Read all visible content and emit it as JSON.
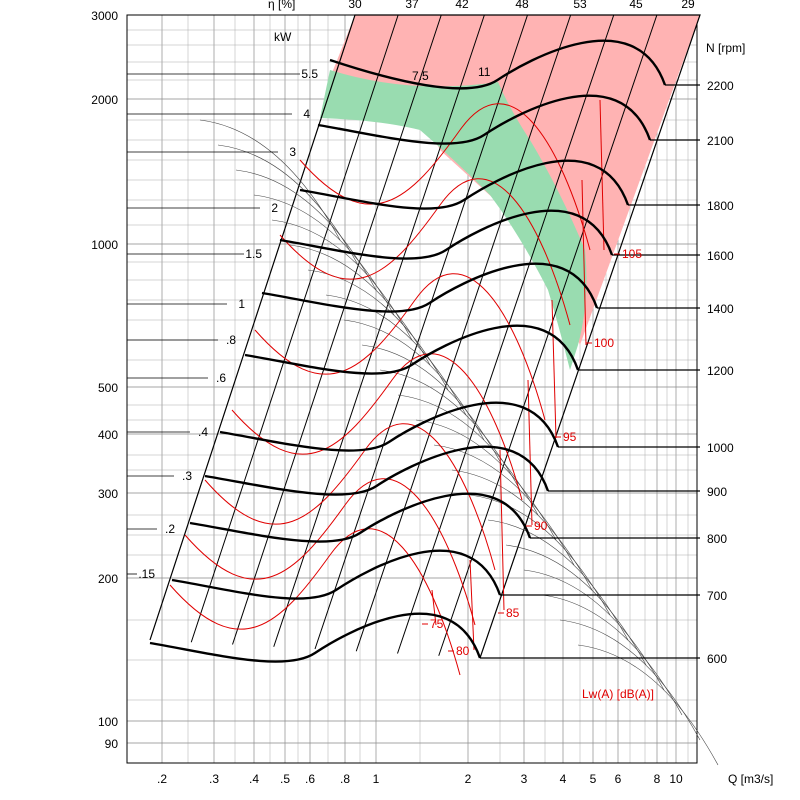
{
  "chart_data": {
    "type": "line",
    "title": "",
    "xlabel": "Q [m3/s]",
    "ylabel": "",
    "x_scale": "log",
    "y_scale": "log",
    "xlim": [
      0.15,
      15
    ],
    "ylim": [
      80,
      3000
    ],
    "x_ticks": [
      0.2,
      0.3,
      0.4,
      0.5,
      0.6,
      0.8,
      1,
      2,
      3,
      4,
      5,
      6,
      8,
      10
    ],
    "x_tick_labels": [
      ".2",
      ".3",
      ".4",
      ".5",
      ".6",
      ".8",
      "1",
      "2",
      "3",
      "4",
      "5",
      "6",
      "8",
      "10"
    ],
    "y_ticks": [
      90,
      100,
      200,
      300,
      400,
      500,
      1000,
      2000,
      3000
    ],
    "y_tick_labels": [
      "90",
      "100",
      "200",
      "300",
      "400",
      "500",
      "1000",
      "2000",
      "3000"
    ],
    "speed_axis_label": "N [rpm]",
    "speed_ticks": [
      "2200",
      "2100",
      "1800",
      "1600",
      "1400",
      "1200",
      "1000",
      "900",
      "800",
      "700",
      "600"
    ],
    "power_axis_label": "kW",
    "power_labels": [
      "5.5",
      "4",
      "3",
      "2",
      "1.5",
      "1",
      ".8",
      ".6",
      ".4",
      ".3",
      ".2",
      ".15"
    ],
    "efficiency_axis_label": "η [%]",
    "efficiency_labels": [
      "30",
      "37",
      "42",
      "48",
      "53",
      "45",
      "29"
    ],
    "top_power_labels": [
      "7.5",
      "11"
    ],
    "sound_axis_label": "Lw(A)  [dB(A)]",
    "sound_labels": [
      "105",
      "100",
      "95",
      "90",
      "85",
      "80",
      "75"
    ],
    "grid": true,
    "colors": {
      "speed_curve": "#000000",
      "sound_curve": "#e00000",
      "grid": "#888888",
      "forbidden_zone": "#ffb3b3",
      "recommended_zone": "#99dcb0"
    }
  }
}
